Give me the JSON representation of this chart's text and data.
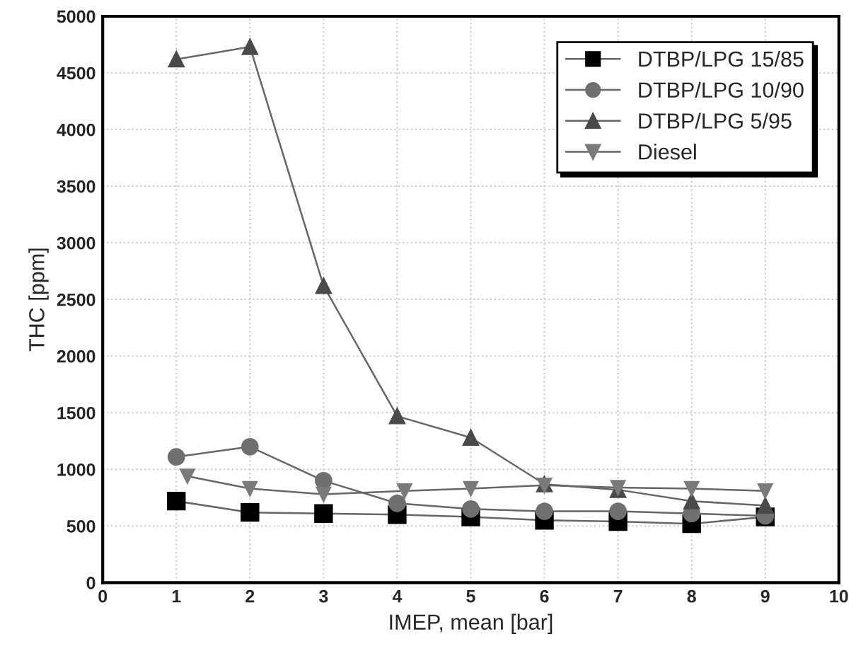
{
  "chart_data": {
    "type": "line",
    "xlabel": "IMEP, mean [bar]",
    "ylabel": "THC [ppm]",
    "xlim": [
      0,
      10
    ],
    "xticks": [
      0,
      1,
      2,
      3,
      4,
      5,
      6,
      7,
      8,
      9,
      10
    ],
    "ylim": [
      0,
      5000
    ],
    "yticks": [
      0,
      500,
      1000,
      1500,
      2000,
      2500,
      3000,
      3500,
      4000,
      4500,
      5000
    ],
    "grid": true,
    "legend": "top right",
    "series": [
      {
        "name": "DTBP/LPG 15/85",
        "color": "#000000",
        "marker": "square",
        "x": [
          1,
          2,
          3,
          4,
          5,
          6,
          7,
          8,
          9
        ],
        "values": [
          720,
          620,
          610,
          600,
          580,
          550,
          540,
          520,
          580
        ]
      },
      {
        "name": "DTBP/LPG 10/90",
        "color": "#707070",
        "marker": "circle",
        "x": [
          1,
          2,
          3,
          4,
          5,
          6,
          7,
          8,
          9
        ],
        "values": [
          1110,
          1200,
          900,
          700,
          650,
          630,
          630,
          610,
          590
        ]
      },
      {
        "name": "DTBP/LPG 5/95",
        "color": "#4a4a4a",
        "marker": "triangle",
        "x": [
          1,
          2,
          3,
          4,
          5,
          6,
          7,
          8,
          9
        ],
        "values": [
          4620,
          4730,
          2620,
          1470,
          1280,
          870,
          820,
          720,
          680
        ]
      },
      {
        "name": "Diesel",
        "color": "#7a7a7a",
        "marker": "triangle_down",
        "x": [
          1.15,
          2,
          3,
          4.1,
          5,
          6,
          7,
          8,
          9
        ],
        "values": [
          940,
          830,
          780,
          810,
          830,
          860,
          840,
          830,
          810
        ]
      }
    ]
  }
}
